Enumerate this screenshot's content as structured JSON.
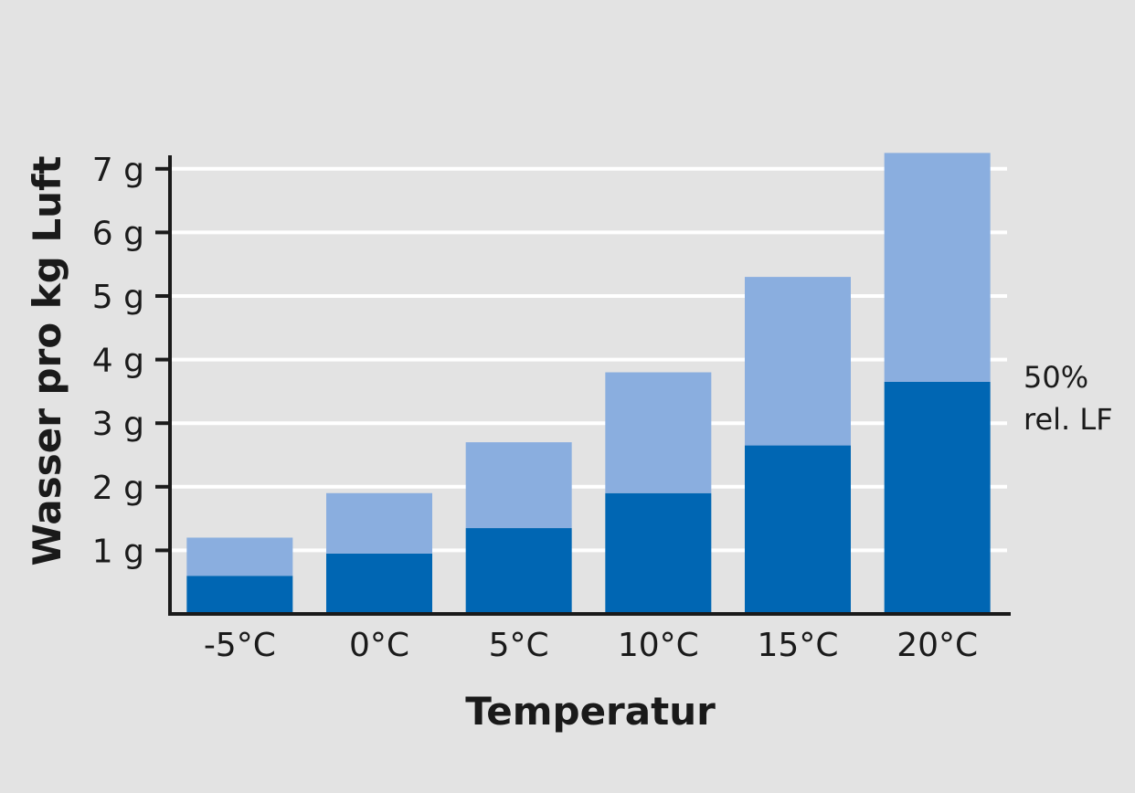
{
  "chart_data": {
    "type": "bar",
    "stacked": true,
    "title": "",
    "xlabel": "Temperatur",
    "ylabel": "Wasser pro kg Luft",
    "categories": [
      "-5°C",
      "0°C",
      "5°C",
      "10°C",
      "15°C",
      "20°C"
    ],
    "y_ticks": [
      1,
      2,
      3,
      4,
      5,
      6,
      7
    ],
    "y_tick_labels": [
      "1 g",
      "2 g",
      "3 g",
      "4 g",
      "5 g",
      "6 g",
      "7 g"
    ],
    "ylim": [
      0,
      7.2
    ],
    "grid": true,
    "series": [
      {
        "values": [
          0.6,
          0.95,
          1.35,
          1.9,
          2.65,
          3.65
        ],
        "color": "#0066b3"
      },
      {
        "values": [
          0.6,
          0.95,
          1.35,
          1.9,
          2.65,
          3.6
        ],
        "color": "#8aaedf"
      }
    ],
    "annotation": {
      "line1": "50%",
      "line2": "rel. LF"
    }
  }
}
